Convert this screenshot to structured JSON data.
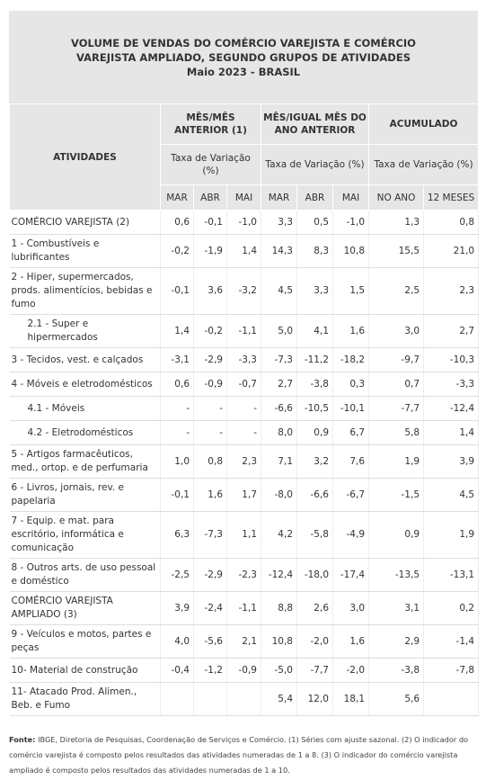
{
  "title": [
    "VOLUME DE VENDAS DO COMÉRCIO VAREJISTA E COMÉRCIO",
    "VAREJISTA AMPLIADO, SEGUNDO GRUPOS DE ATIVIDADES",
    "Maio 2023 - BRASIL"
  ],
  "header": {
    "activities": "ATIVIDADES",
    "groups": [
      {
        "label": "MÊS/MÊS ANTERIOR (1)",
        "sub": "Taxa de Variação (%)",
        "cols": [
          "MAR",
          "ABR",
          "MAI"
        ]
      },
      {
        "label": "MÊS/IGUAL MÊS DO ANO ANTERIOR",
        "sub": "Taxa de Variação (%)",
        "cols": [
          "MAR",
          "ABR",
          "MAI"
        ]
      },
      {
        "label": "ACUMULADO",
        "sub": "Taxa de Variação (%)",
        "cols": [
          "NO ANO",
          "12 MESES"
        ]
      }
    ]
  },
  "table": {
    "rows": [
      [
        "COMÉRCIO VAREJISTA (2)",
        "0,6",
        "-0,1",
        "-1,0",
        "3,3",
        "0,5",
        "-1,0",
        "1,3",
        "0,8"
      ],
      [
        "1 - Combustíveis e lubrificantes",
        "-0,2",
        "-1,9",
        "1,4",
        "14,3",
        "8,3",
        "10,8",
        "15,5",
        "21,0"
      ],
      [
        "2 - Hiper, supermercados, prods.  alimentícios, bebidas e fumo",
        "-0,1",
        "3,6",
        "-3,2",
        "4,5",
        "3,3",
        "1,5",
        "2,5",
        "2,3"
      ],
      [
        "2.1 - Super e hipermercados",
        "1,4",
        "-0,2",
        "-1,1",
        "5,0",
        "4,1",
        "1,6",
        "3,0",
        "2,7"
      ],
      [
        "3 - Tecidos, vest. e calçados",
        "-3,1",
        "-2,9",
        "-3,3",
        "-7,3",
        "-11,2",
        "-18,2",
        "-9,7",
        "-10,3"
      ],
      [
        "4 - Móveis e eletrodomésticos",
        "0,6",
        "-0,9",
        "-0,7",
        "2,7",
        "-3,8",
        "0,3",
        "0,7",
        "-3,3"
      ],
      [
        "4.1 - Móveis",
        "-",
        "-",
        "-",
        "-6,6",
        "-10,5",
        "-10,1",
        "-7,7",
        "-12,4"
      ],
      [
        "4.2 - Eletrodomésticos",
        "-",
        "-",
        "-",
        "8,0",
        "0,9",
        "6,7",
        "5,8",
        "1,4"
      ],
      [
        "5 - Artigos farmacêuticos, med., ortop. e de perfumaria",
        "1,0",
        "0,8",
        "2,3",
        "7,1",
        "3,2",
        "7,6",
        "1,9",
        "3,9"
      ],
      [
        "6 - Livros, jornais, rev. e papelaria",
        "-0,1",
        "1,6",
        "1,7",
        "-8,0",
        "-6,6",
        "-6,7",
        "-1,5",
        "4,5"
      ],
      [
        "7 - Equip. e mat. para escritório, informática e comunicação",
        "6,3",
        "-7,3",
        "1,1",
        "4,2",
        "-5,8",
        "-4,9",
        "0,9",
        "1,9"
      ],
      [
        "8 - Outros arts. de uso pessoal e doméstico",
        "-2,5",
        "-2,9",
        "-2,3",
        "-12,4",
        "-18,0",
        "-17,4",
        "-13,5",
        "-13,1"
      ],
      [
        "COMÉRCIO VAREJISTA AMPLIADO (3)",
        "3,9",
        "-2,4",
        "-1,1",
        "8,8",
        "2,6",
        "3,0",
        "3,1",
        "0,2"
      ],
      [
        "9 - Veículos e motos, partes e peças",
        "4,0",
        "-5,6",
        "2,1",
        "10,8",
        "-2,0",
        "1,6",
        "2,9",
        "-1,4"
      ],
      [
        "10- Material de construção",
        "-0,4",
        "-1,2",
        "-0,9",
        "-5,0",
        "-7,7",
        "-2,0",
        "-3,8",
        "-7,8"
      ],
      [
        "11- Atacado Prod. Alimen., Beb. e Fumo",
        null,
        null,
        null,
        "5,4",
        "12,0",
        "18,1",
        "5,6",
        null
      ]
    ]
  },
  "footnote": {
    "source": "Fonte:",
    "text": " IBGE, Diretoria de Pesquisas, Coordenação de Serviços e Comércio.  (1) Séries com ajuste sazonal. (2) O indicador do comércio varejista é composto pelos resultados das atividades numeradas de 1 a 8. (3) O indicador do comércio varejista ampliado é composto pelos resultados das atividades numeradas de 1 a 10."
  }
}
